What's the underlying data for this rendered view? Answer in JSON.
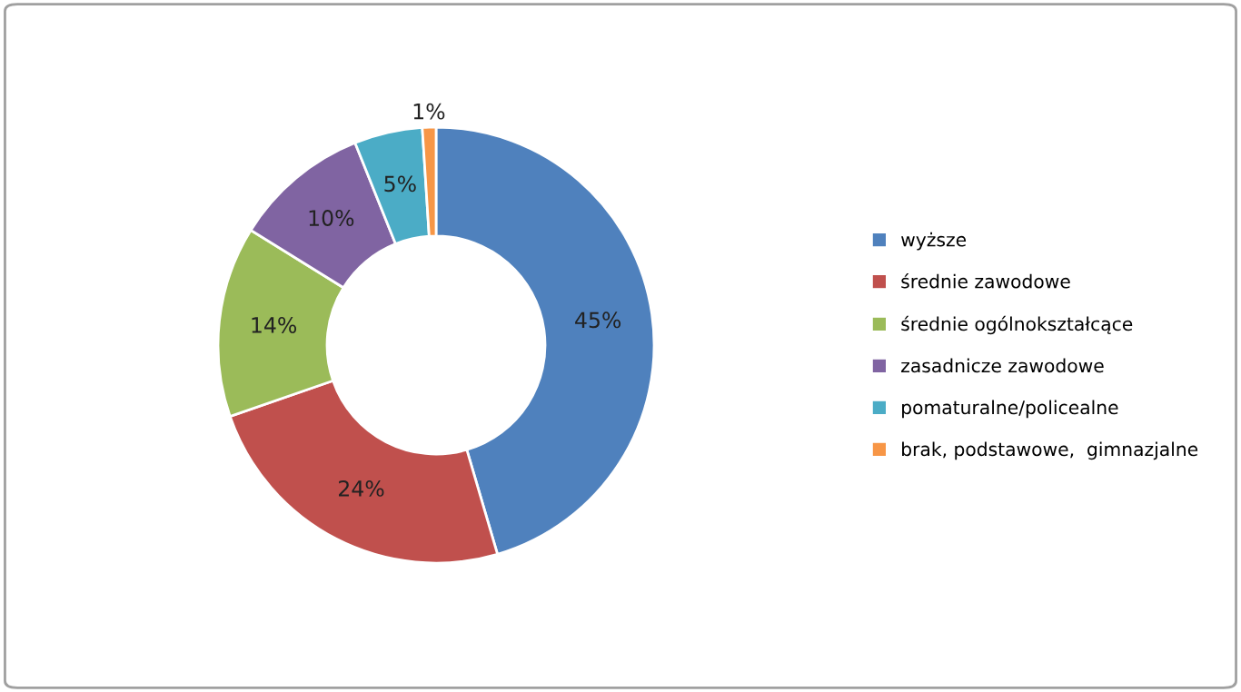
{
  "chart_data": {
    "type": "donut",
    "categories": [
      "wyższe",
      "średnie zawodowe",
      "średnie ogólnokształcące",
      "zasadnicze zawodowe",
      "pomaturalne/policealne",
      "brak, podstawowe,  gimnazjalne"
    ],
    "values": [
      45,
      24,
      14,
      10,
      5,
      1
    ],
    "colors": [
      "#4f81bd",
      "#c0504d",
      "#9bbb59",
      "#8064a2",
      "#4bacc6",
      "#f79646"
    ],
    "value_labels": [
      "45%",
      "24%",
      "14%",
      "10%",
      "5%",
      "1%"
    ],
    "legend": "right"
  }
}
